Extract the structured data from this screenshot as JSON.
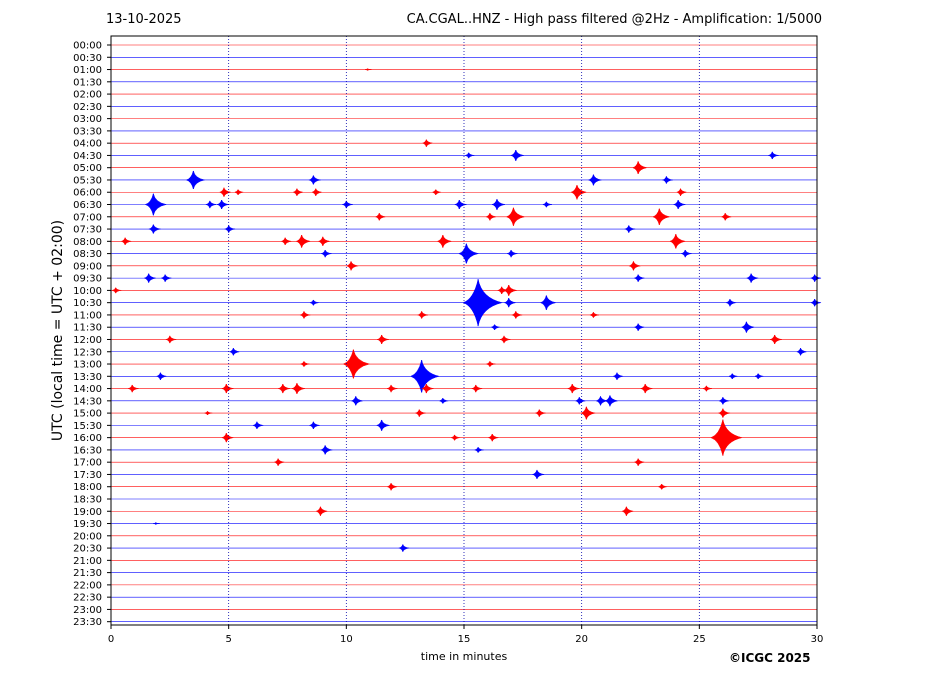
{
  "header": {
    "date": "13-10-2025",
    "station_title": "CA.CGAL..HNZ - High pass filtered @2Hz - Amplification: 1/5000"
  },
  "footer": {
    "copyright": "©ICGC 2025"
  },
  "colors": {
    "trace_a": "#ff0000",
    "trace_b": "#0000ff",
    "axis": "#000000",
    "grid_vertical": "#0000aa"
  },
  "chart_data": {
    "type": "line",
    "subtype": "helicorder",
    "title": "CA.CGAL..HNZ - High pass filtered @2Hz - Amplification: 1/5000",
    "xlabel": "time in minutes",
    "ylabel": "UTC (local time = UTC + 02:00)",
    "xlim": [
      0,
      30
    ],
    "xticks": [
      0,
      5,
      10,
      15,
      20,
      25,
      30
    ],
    "vertical_grid_minutes": [
      5,
      10,
      15,
      20,
      25
    ],
    "row_labels": [
      "00:00",
      "00:30",
      "01:00",
      "01:30",
      "02:00",
      "02:30",
      "03:00",
      "03:30",
      "04:00",
      "04:30",
      "05:00",
      "05:30",
      "06:00",
      "06:30",
      "07:00",
      "07:30",
      "08:00",
      "08:30",
      "09:00",
      "09:30",
      "10:00",
      "10:30",
      "11:00",
      "11:30",
      "12:00",
      "12:30",
      "13:00",
      "13:30",
      "14:00",
      "14:30",
      "15:00",
      "15:30",
      "16:00",
      "16:30",
      "17:00",
      "17:30",
      "18:00",
      "18:30",
      "19:00",
      "19:30",
      "20:00",
      "20:30",
      "21:00",
      "21:30",
      "22:00",
      "22:30",
      "23:00",
      "23:30"
    ],
    "row_colors": [
      "red",
      "blue"
    ],
    "events": [
      {
        "row": "01:00",
        "minute": 10.9,
        "amp": 0.1
      },
      {
        "row": "04:00",
        "minute": 13.4,
        "amp": 0.4
      },
      {
        "row": "04:30",
        "minute": 15.2,
        "amp": 0.3
      },
      {
        "row": "04:30",
        "minute": 17.2,
        "amp": 0.6
      },
      {
        "row": "04:30",
        "minute": 28.1,
        "amp": 0.4
      },
      {
        "row": "05:00",
        "minute": 22.4,
        "amp": 0.7
      },
      {
        "row": "05:30",
        "minute": 3.5,
        "amp": 1.0
      },
      {
        "row": "05:30",
        "minute": 8.6,
        "amp": 0.5
      },
      {
        "row": "05:30",
        "minute": 20.5,
        "amp": 0.6
      },
      {
        "row": "05:30",
        "minute": 23.6,
        "amp": 0.4
      },
      {
        "row": "06:00",
        "minute": 4.8,
        "amp": 0.5
      },
      {
        "row": "06:00",
        "minute": 5.4,
        "amp": 0.3
      },
      {
        "row": "06:00",
        "minute": 7.9,
        "amp": 0.4
      },
      {
        "row": "06:00",
        "minute": 8.7,
        "amp": 0.4
      },
      {
        "row": "06:00",
        "minute": 13.8,
        "amp": 0.3
      },
      {
        "row": "06:00",
        "minute": 19.8,
        "amp": 0.8
      },
      {
        "row": "06:00",
        "minute": 24.2,
        "amp": 0.4
      },
      {
        "row": "06:30",
        "minute": 1.8,
        "amp": 1.2
      },
      {
        "row": "06:30",
        "minute": 4.2,
        "amp": 0.4
      },
      {
        "row": "06:30",
        "minute": 4.7,
        "amp": 0.5
      },
      {
        "row": "06:30",
        "minute": 10.0,
        "amp": 0.4
      },
      {
        "row": "06:30",
        "minute": 14.8,
        "amp": 0.5
      },
      {
        "row": "06:30",
        "minute": 16.4,
        "amp": 0.6
      },
      {
        "row": "06:30",
        "minute": 18.5,
        "amp": 0.3
      },
      {
        "row": "06:30",
        "minute": 24.1,
        "amp": 0.5
      },
      {
        "row": "07:00",
        "minute": 11.4,
        "amp": 0.4
      },
      {
        "row": "07:00",
        "minute": 16.1,
        "amp": 0.4
      },
      {
        "row": "07:00",
        "minute": 17.1,
        "amp": 1.0
      },
      {
        "row": "07:00",
        "minute": 23.3,
        "amp": 0.9
      },
      {
        "row": "07:00",
        "minute": 26.1,
        "amp": 0.4
      },
      {
        "row": "07:30",
        "minute": 1.8,
        "amp": 0.5
      },
      {
        "row": "07:30",
        "minute": 5.0,
        "amp": 0.4
      },
      {
        "row": "07:30",
        "minute": 22.0,
        "amp": 0.4
      },
      {
        "row": "08:00",
        "minute": 0.6,
        "amp": 0.4
      },
      {
        "row": "08:00",
        "minute": 7.4,
        "amp": 0.4
      },
      {
        "row": "08:00",
        "minute": 8.1,
        "amp": 0.7
      },
      {
        "row": "08:00",
        "minute": 9.0,
        "amp": 0.5
      },
      {
        "row": "08:00",
        "minute": 14.1,
        "amp": 0.7
      },
      {
        "row": "08:00",
        "minute": 24.0,
        "amp": 0.8
      },
      {
        "row": "08:30",
        "minute": 9.1,
        "amp": 0.4
      },
      {
        "row": "08:30",
        "minute": 15.1,
        "amp": 1.1
      },
      {
        "row": "08:30",
        "minute": 17.0,
        "amp": 0.4
      },
      {
        "row": "08:30",
        "minute": 24.4,
        "amp": 0.4
      },
      {
        "row": "09:00",
        "minute": 10.2,
        "amp": 0.5
      },
      {
        "row": "09:00",
        "minute": 22.2,
        "amp": 0.5
      },
      {
        "row": "09:30",
        "minute": 1.6,
        "amp": 0.5
      },
      {
        "row": "09:30",
        "minute": 2.3,
        "amp": 0.4
      },
      {
        "row": "09:30",
        "minute": 22.4,
        "amp": 0.4
      },
      {
        "row": "09:30",
        "minute": 27.2,
        "amp": 0.5
      },
      {
        "row": "09:30",
        "minute": 29.9,
        "amp": 0.4
      },
      {
        "row": "10:00",
        "minute": 0.2,
        "amp": 0.3
      },
      {
        "row": "10:00",
        "minute": 16.6,
        "amp": 0.4
      },
      {
        "row": "10:00",
        "minute": 16.9,
        "amp": 0.6
      },
      {
        "row": "10:30",
        "minute": 8.6,
        "amp": 0.3
      },
      {
        "row": "10:30",
        "minute": 15.6,
        "amp": 2.6
      },
      {
        "row": "10:30",
        "minute": 16.9,
        "amp": 0.5
      },
      {
        "row": "10:30",
        "minute": 18.5,
        "amp": 0.8
      },
      {
        "row": "10:30",
        "minute": 26.3,
        "amp": 0.4
      },
      {
        "row": "10:30",
        "minute": 29.9,
        "amp": 0.4
      },
      {
        "row": "11:00",
        "minute": 8.2,
        "amp": 0.4
      },
      {
        "row": "11:00",
        "minute": 13.2,
        "amp": 0.4
      },
      {
        "row": "11:00",
        "minute": 17.2,
        "amp": 0.4
      },
      {
        "row": "11:00",
        "minute": 20.5,
        "amp": 0.3
      },
      {
        "row": "11:30",
        "minute": 16.3,
        "amp": 0.3
      },
      {
        "row": "11:30",
        "minute": 22.4,
        "amp": 0.4
      },
      {
        "row": "11:30",
        "minute": 27.0,
        "amp": 0.6
      },
      {
        "row": "12:00",
        "minute": 2.5,
        "amp": 0.4
      },
      {
        "row": "12:00",
        "minute": 11.5,
        "amp": 0.5
      },
      {
        "row": "12:00",
        "minute": 16.7,
        "amp": 0.4
      },
      {
        "row": "12:00",
        "minute": 28.2,
        "amp": 0.5
      },
      {
        "row": "12:30",
        "minute": 5.2,
        "amp": 0.4
      },
      {
        "row": "12:30",
        "minute": 29.3,
        "amp": 0.4
      },
      {
        "row": "13:00",
        "minute": 8.2,
        "amp": 0.3
      },
      {
        "row": "13:00",
        "minute": 10.3,
        "amp": 1.6
      },
      {
        "row": "13:00",
        "minute": 16.1,
        "amp": 0.3
      },
      {
        "row": "13:30",
        "minute": 2.1,
        "amp": 0.4
      },
      {
        "row": "13:30",
        "minute": 13.2,
        "amp": 1.8
      },
      {
        "row": "13:30",
        "minute": 21.5,
        "amp": 0.4
      },
      {
        "row": "13:30",
        "minute": 26.4,
        "amp": 0.3
      },
      {
        "row": "13:30",
        "minute": 27.5,
        "amp": 0.3
      },
      {
        "row": "14:00",
        "minute": 0.9,
        "amp": 0.4
      },
      {
        "row": "14:00",
        "minute": 4.9,
        "amp": 0.5
      },
      {
        "row": "14:00",
        "minute": 7.3,
        "amp": 0.5
      },
      {
        "row": "14:00",
        "minute": 7.9,
        "amp": 0.6
      },
      {
        "row": "14:00",
        "minute": 11.9,
        "amp": 0.4
      },
      {
        "row": "14:00",
        "minute": 13.4,
        "amp": 0.5
      },
      {
        "row": "14:00",
        "minute": 15.5,
        "amp": 0.4
      },
      {
        "row": "14:00",
        "minute": 19.6,
        "amp": 0.5
      },
      {
        "row": "14:00",
        "minute": 22.7,
        "amp": 0.5
      },
      {
        "row": "14:00",
        "minute": 25.3,
        "amp": 0.3
      },
      {
        "row": "14:30",
        "minute": 10.4,
        "amp": 0.5
      },
      {
        "row": "14:30",
        "minute": 14.1,
        "amp": 0.3
      },
      {
        "row": "14:30",
        "minute": 19.9,
        "amp": 0.4
      },
      {
        "row": "14:30",
        "minute": 20.8,
        "amp": 0.5
      },
      {
        "row": "14:30",
        "minute": 21.2,
        "amp": 0.6
      },
      {
        "row": "14:30",
        "minute": 26.0,
        "amp": 0.4
      },
      {
        "row": "15:00",
        "minute": 4.1,
        "amp": 0.2
      },
      {
        "row": "15:00",
        "minute": 13.1,
        "amp": 0.4
      },
      {
        "row": "15:00",
        "minute": 18.2,
        "amp": 0.4
      },
      {
        "row": "15:00",
        "minute": 20.2,
        "amp": 0.7
      },
      {
        "row": "15:00",
        "minute": 26.0,
        "amp": 0.5
      },
      {
        "row": "15:30",
        "minute": 6.2,
        "amp": 0.4
      },
      {
        "row": "15:30",
        "minute": 8.6,
        "amp": 0.4
      },
      {
        "row": "15:30",
        "minute": 11.5,
        "amp": 0.6
      },
      {
        "row": "16:00",
        "minute": 4.9,
        "amp": 0.5
      },
      {
        "row": "16:00",
        "minute": 14.6,
        "amp": 0.3
      },
      {
        "row": "16:00",
        "minute": 16.2,
        "amp": 0.4
      },
      {
        "row": "16:00",
        "minute": 26.0,
        "amp": 2.0
      },
      {
        "row": "16:30",
        "minute": 9.1,
        "amp": 0.5
      },
      {
        "row": "16:30",
        "minute": 15.6,
        "amp": 0.3
      },
      {
        "row": "17:00",
        "minute": 7.1,
        "amp": 0.4
      },
      {
        "row": "17:00",
        "minute": 22.4,
        "amp": 0.4
      },
      {
        "row": "17:30",
        "minute": 18.1,
        "amp": 0.5
      },
      {
        "row": "18:00",
        "minute": 11.9,
        "amp": 0.4
      },
      {
        "row": "18:00",
        "minute": 23.4,
        "amp": 0.3
      },
      {
        "row": "19:00",
        "minute": 8.9,
        "amp": 0.5
      },
      {
        "row": "19:00",
        "minute": 21.9,
        "amp": 0.5
      },
      {
        "row": "19:30",
        "minute": 1.9,
        "amp": 0.1
      },
      {
        "row": "20:30",
        "minute": 12.4,
        "amp": 0.4
      }
    ]
  }
}
